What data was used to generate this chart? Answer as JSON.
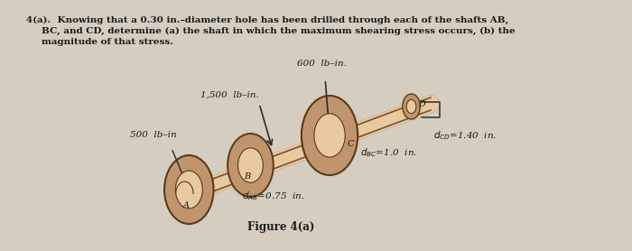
{
  "bg_color": "#d4cdc0",
  "title_text": "4(a).  Knowing that a 0.30 in.–diameter hole has been drilled through each of the shafts AB,\n        BC, and CD, determine (a) the shaft in which the maximum shearing stress occurs, (b) the\n        magnitude of that stress.",
  "label_600": "600  lb–in.",
  "label_1500": "1,500  lb–in.",
  "label_500": "500  lb–in",
  "label_dcd": "dₙₙ =1.40  in.",
  "label_dbc": "dₙₙ =1.0  in.",
  "label_dab": "dₙₙ =0.75  in.",
  "fig_caption": "Figure 4(a)",
  "shaft_color": "#e8c9a0",
  "disk_color_outer": "#c0956e",
  "disk_color_inner": "#e8c9a0",
  "text_color": "#1a1a1a"
}
